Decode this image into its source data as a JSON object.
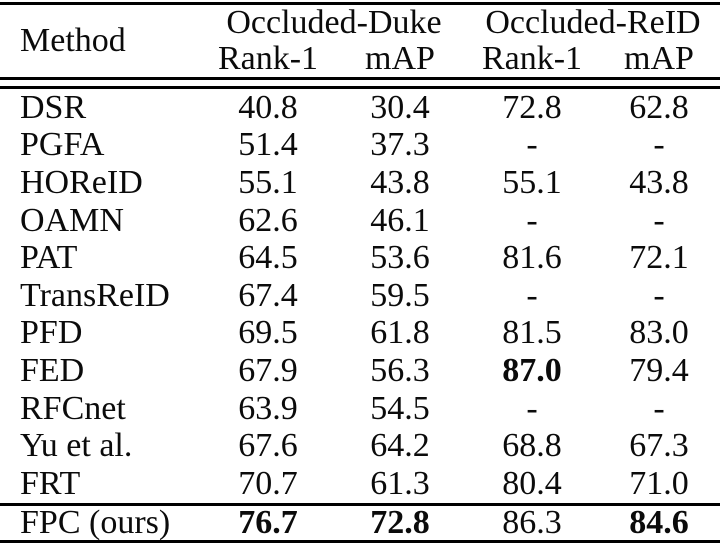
{
  "table": {
    "method_header": "Method",
    "col_groups": [
      {
        "label": "Occluded-Duke"
      },
      {
        "label": "Occluded-ReID"
      }
    ],
    "sub_headers": [
      "Rank-1",
      "mAP",
      "Rank-1",
      "mAP"
    ],
    "rows": [
      {
        "method": "DSR",
        "values": [
          "40.8",
          "30.4",
          "72.8",
          "62.8"
        ],
        "bold": [
          false,
          false,
          false,
          false
        ]
      },
      {
        "method": "PGFA",
        "values": [
          "51.4",
          "37.3",
          "-",
          "-"
        ],
        "bold": [
          false,
          false,
          false,
          false
        ]
      },
      {
        "method": "HOReID",
        "values": [
          "55.1",
          "43.8",
          "55.1",
          "43.8"
        ],
        "bold": [
          false,
          false,
          false,
          false
        ]
      },
      {
        "method": "OAMN",
        "values": [
          "62.6",
          "46.1",
          "-",
          "-"
        ],
        "bold": [
          false,
          false,
          false,
          false
        ]
      },
      {
        "method": "PAT",
        "values": [
          "64.5",
          "53.6",
          "81.6",
          "72.1"
        ],
        "bold": [
          false,
          false,
          false,
          false
        ]
      },
      {
        "method": "TransReID",
        "values": [
          "67.4",
          "59.5",
          "-",
          "-"
        ],
        "bold": [
          false,
          false,
          false,
          false
        ]
      },
      {
        "method": "PFD",
        "values": [
          "69.5",
          "61.8",
          "81.5",
          "83.0"
        ],
        "bold": [
          false,
          false,
          false,
          false
        ]
      },
      {
        "method": "FED",
        "values": [
          "67.9",
          "56.3",
          "87.0",
          "79.4"
        ],
        "bold": [
          false,
          false,
          true,
          false
        ]
      },
      {
        "method": "RFCnet",
        "values": [
          "63.9",
          "54.5",
          "-",
          "-"
        ],
        "bold": [
          false,
          false,
          false,
          false
        ]
      },
      {
        "method": "Yu et al.",
        "values": [
          "67.6",
          "64.2",
          "68.8",
          "67.3"
        ],
        "bold": [
          false,
          false,
          false,
          false
        ]
      },
      {
        "method": "FRT",
        "values": [
          "70.7",
          "61.3",
          "80.4",
          "71.0"
        ],
        "bold": [
          false,
          false,
          false,
          false
        ]
      }
    ],
    "highlight_row": {
      "method": "FPC (ours)",
      "values": [
        "76.7",
        "72.8",
        "86.3",
        "84.6"
      ],
      "bold": [
        true,
        true,
        false,
        true
      ]
    }
  },
  "colors": {
    "text": "#0b0b0b",
    "rule": "#000000",
    "background": "#ffffff"
  }
}
